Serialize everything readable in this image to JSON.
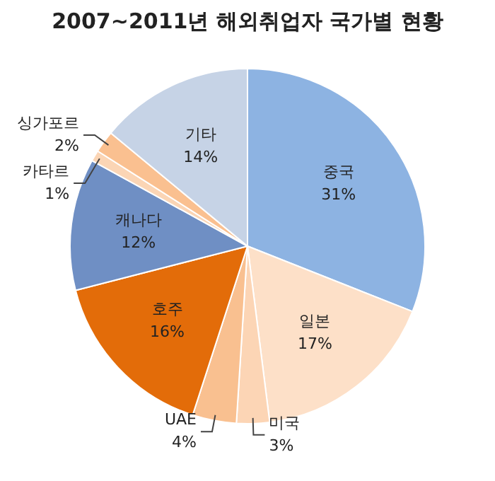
{
  "chart_data": {
    "type": "pie",
    "title": "2007~2011년 해외취업자 국가별 현황",
    "categories": [
      "중국",
      "일본",
      "미국",
      "UAE",
      "호주",
      "캐나다",
      "카타르",
      "싱가포르",
      "기타"
    ],
    "values": [
      31,
      17,
      3,
      4,
      16,
      12,
      1,
      2,
      14
    ],
    "value_labels": [
      "31%",
      "17%",
      "3%",
      "4%",
      "16%",
      "12%",
      "1%",
      "2%",
      "14%"
    ],
    "colors": [
      "#8db3e2",
      "#fde0c8",
      "#fcd5b5",
      "#f9c090",
      "#e36c09",
      "#6f8fc4",
      "#fbd5b5",
      "#fac090",
      "#c6d3e6"
    ],
    "legend": false
  }
}
